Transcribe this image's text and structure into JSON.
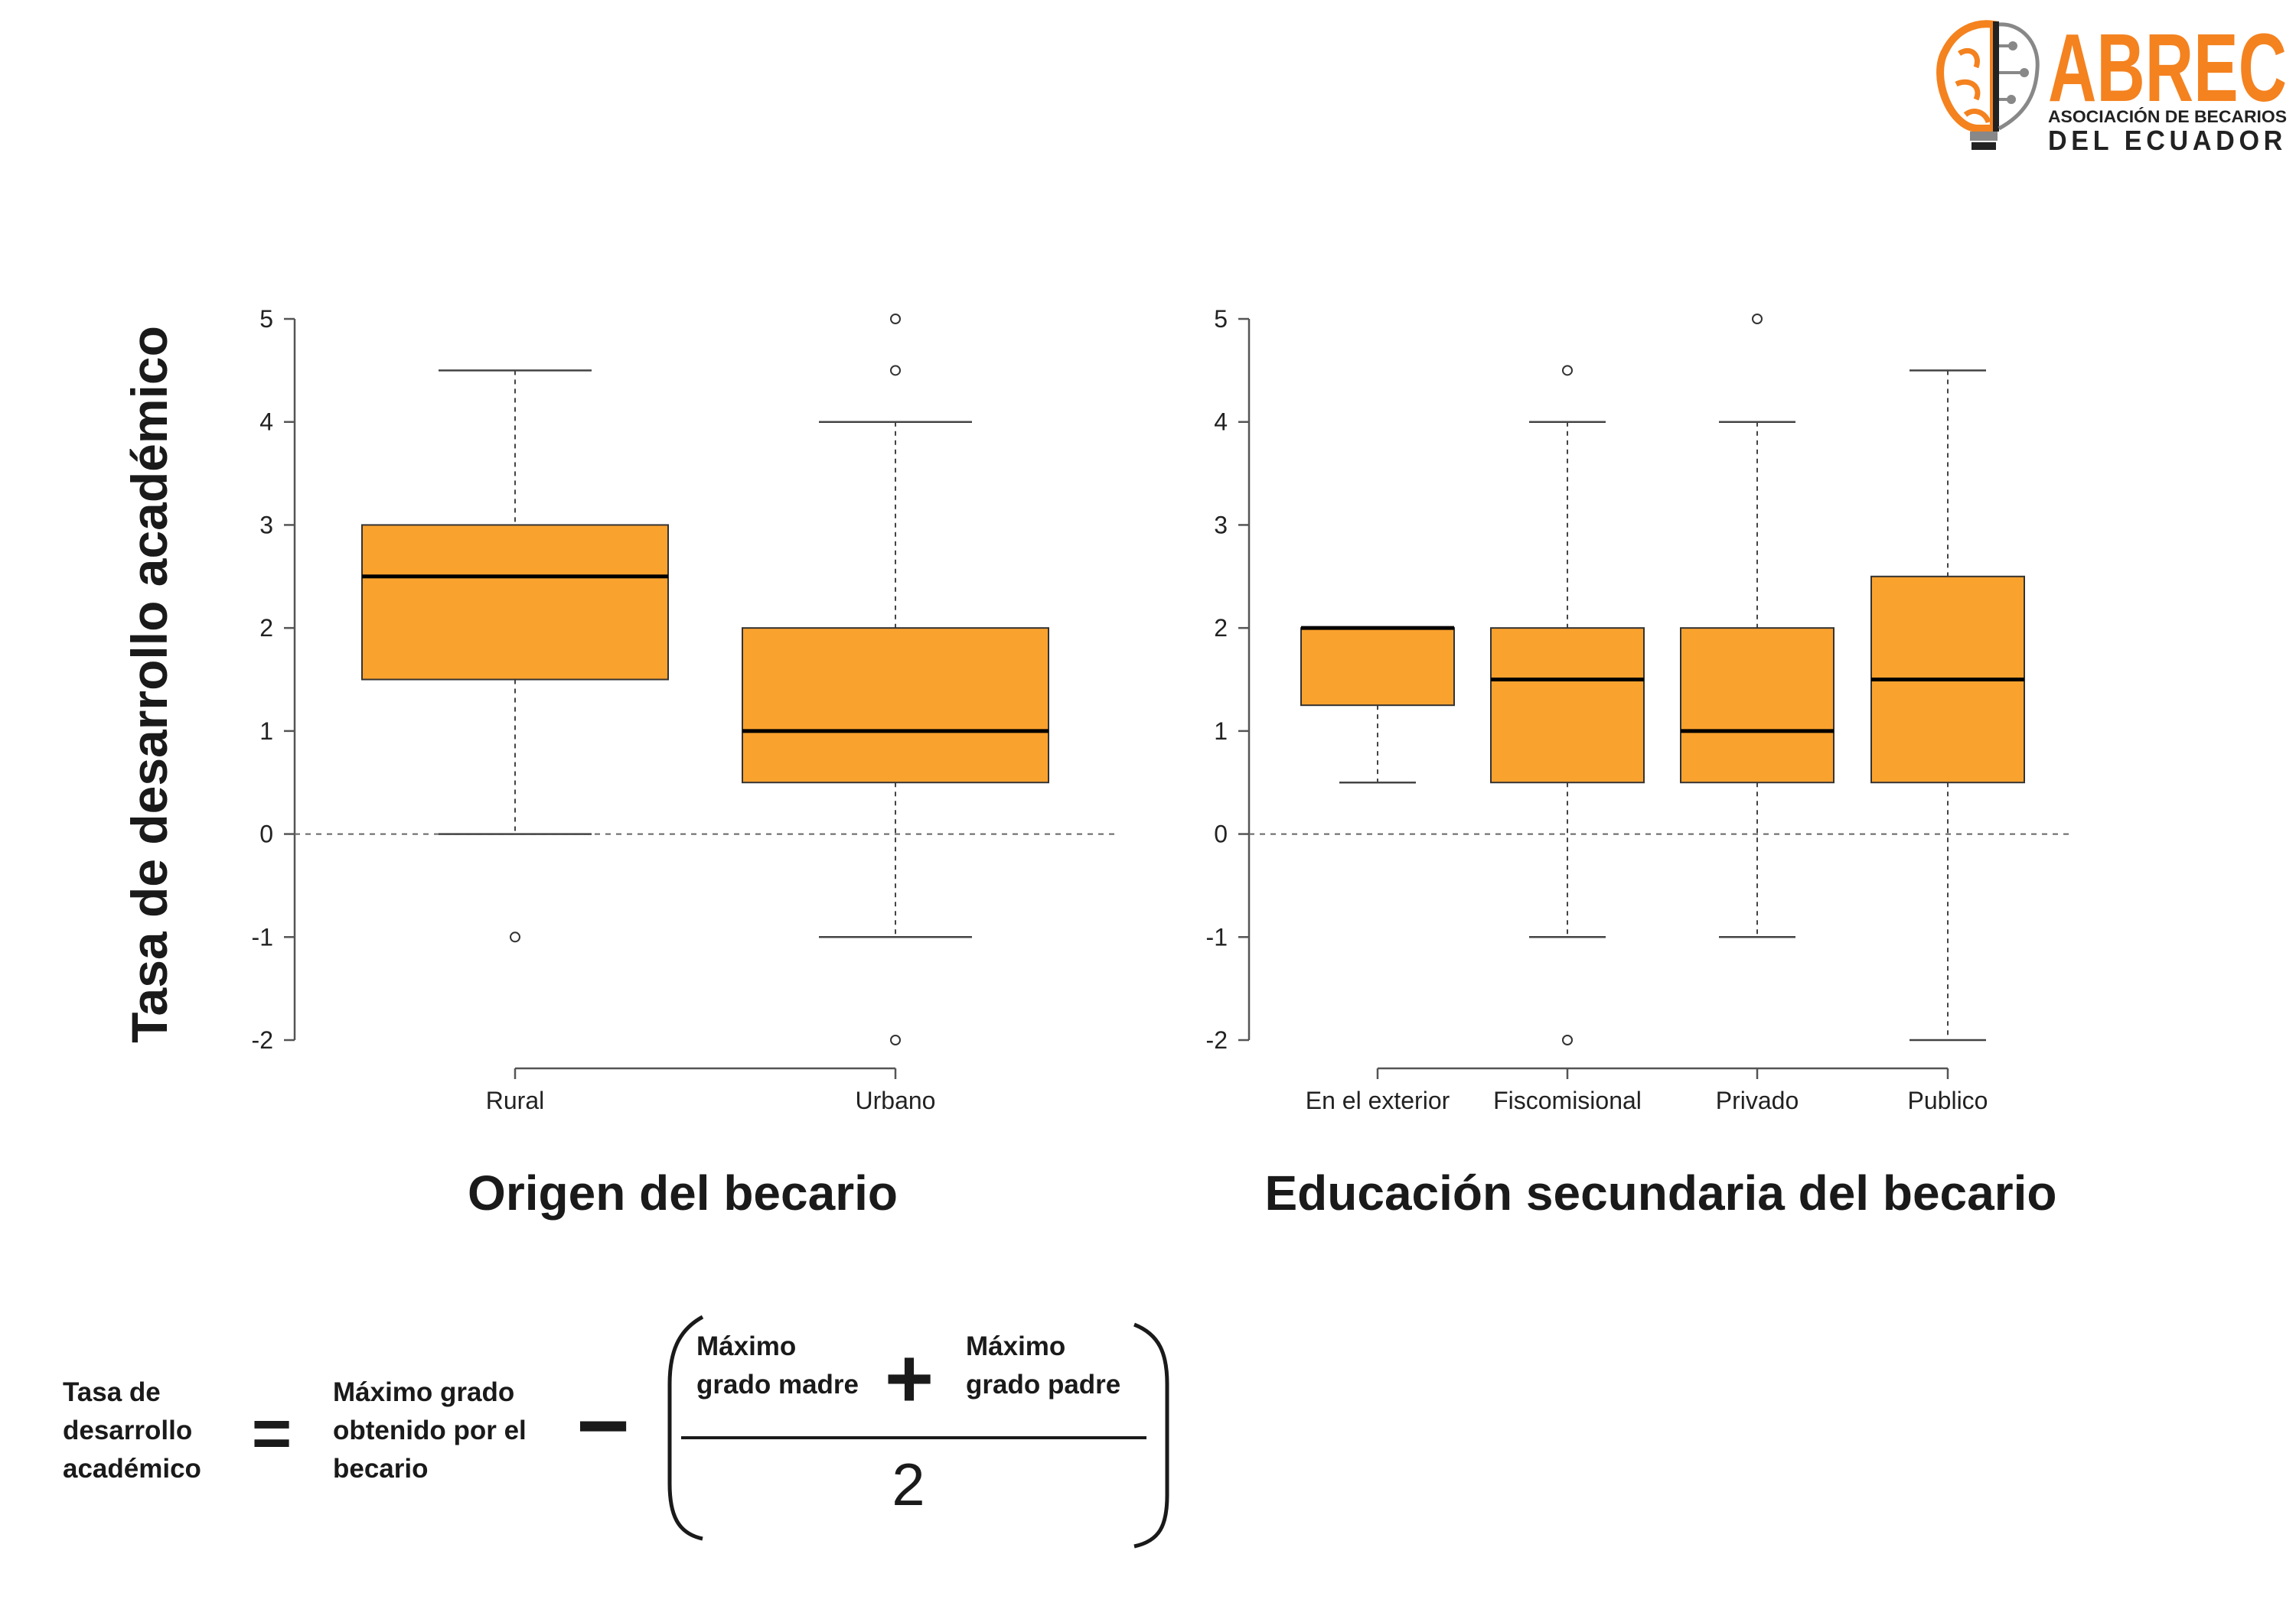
{
  "logo": {
    "brand": "ABREC",
    "subtitle_line1": "ASOCIACIÓN DE BECARIOS",
    "subtitle_line2": "DEL ECUADOR",
    "colors": {
      "orange": "#F4821F",
      "dark": "#222222"
    }
  },
  "colors": {
    "box_fill": "#FAA22E",
    "box_stroke": "#333333",
    "median": "#000000"
  },
  "chart_data": [
    {
      "type": "box",
      "ylabel": "Tasa de desarrollo académico",
      "xlabel": "Origen del becario",
      "ylim": [
        -2,
        5
      ],
      "yticks": [
        -2,
        -1,
        0,
        1,
        2,
        3,
        4,
        5
      ],
      "reference_line": 0,
      "categories": [
        "Rural",
        "Urbano"
      ],
      "boxes": [
        {
          "whisker_low": 0,
          "q1": 1.5,
          "median": 2.5,
          "q3": 3,
          "whisker_high": 4.5,
          "outliers": [
            -1
          ]
        },
        {
          "whisker_low": -1,
          "q1": 0.5,
          "median": 1,
          "q3": 2,
          "whisker_high": 4,
          "outliers": [
            -2,
            4.5,
            5
          ]
        }
      ]
    },
    {
      "type": "box",
      "xlabel": "Educación secundaria del becario",
      "ylim": [
        -2,
        5
      ],
      "yticks": [
        -2,
        -1,
        0,
        1,
        2,
        3,
        4,
        5
      ],
      "reference_line": 0,
      "categories": [
        "En el exterior",
        "Fiscomisional",
        "Privado",
        "Publico"
      ],
      "boxes": [
        {
          "whisker_low": 0.5,
          "q1": 1.25,
          "median": 2,
          "q3": 2,
          "whisker_high": 2,
          "outliers": []
        },
        {
          "whisker_low": -1,
          "q1": 0.5,
          "median": 1.5,
          "q3": 2,
          "whisker_high": 4,
          "outliers": [
            -2,
            4.5
          ]
        },
        {
          "whisker_low": -1,
          "q1": 0.5,
          "median": 1,
          "q3": 2,
          "whisker_high": 4,
          "outliers": [
            5
          ]
        },
        {
          "whisker_low": -2,
          "q1": 0.5,
          "median": 1.5,
          "q3": 2.5,
          "whisker_high": 4.5,
          "outliers": []
        }
      ]
    }
  ],
  "formula": {
    "lhs": [
      "Tasa de",
      "desarrollo",
      "académico"
    ],
    "equals": "=",
    "term1": [
      "Máximo grado",
      "obtenido por el",
      "becario"
    ],
    "minus": "−",
    "mother": [
      "Máximo",
      "grado madre"
    ],
    "plus": "+",
    "father": [
      "Máximo",
      "grado padre"
    ],
    "denominator": "2"
  }
}
